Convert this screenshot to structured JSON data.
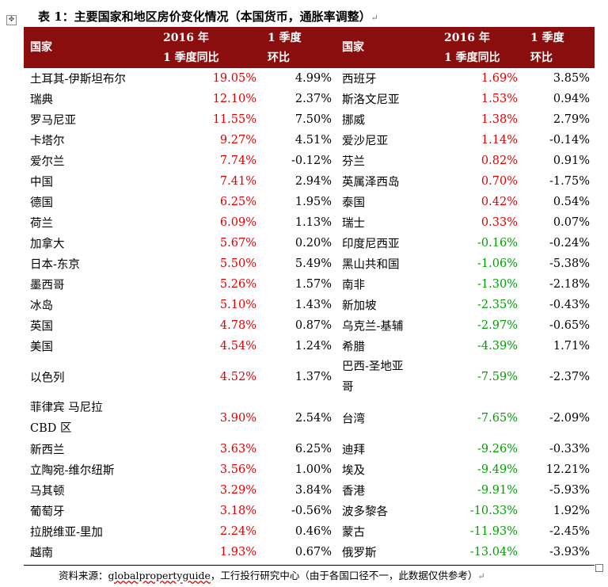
{
  "caption": "表 1：主要国家和地区房价变化情况（本国货币，通胀率调整）",
  "paragraph_mark": "↵",
  "anchor_glyph": "✥",
  "headers": {
    "country_left": "国家",
    "yoy_left_line1": "2016 年",
    "yoy_left_line2": "1 季度同比",
    "qoq_left_line1": "1 季度",
    "qoq_left_line2": "环比",
    "country_right": "国家",
    "yoy_right_line1": "2016 年",
    "yoy_right_line2": "1 季度同比",
    "qoq_right_line1": "1 季度",
    "qoq_right_line2": "环比"
  },
  "rows": [
    {
      "c1": "土耳其-伊斯坦布尔",
      "c2": "19.05%",
      "c3": "4.99%",
      "c4": "西班牙",
      "c5": "1.69%",
      "c6": "3.85%",
      "c5_sign": "pos"
    },
    {
      "c1": "瑞典",
      "c2": "12.10%",
      "c3": "2.37%",
      "c4": "斯洛文尼亚",
      "c5": "1.53%",
      "c6": "0.94%",
      "c5_sign": "pos"
    },
    {
      "c1": "罗马尼亚",
      "c2": "11.55%",
      "c3": "7.50%",
      "c4": "挪威",
      "c5": "1.38%",
      "c6": "2.79%",
      "c5_sign": "pos"
    },
    {
      "c1": "卡塔尔",
      "c2": "9.27%",
      "c3": "4.51%",
      "c4": "爱沙尼亚",
      "c5": "1.14%",
      "c6": "-0.14%",
      "c5_sign": "pos"
    },
    {
      "c1": "爱尔兰",
      "c2": "7.74%",
      "c3": "-0.12%",
      "c4": "芬兰",
      "c5": "0.82%",
      "c6": "0.91%",
      "c5_sign": "pos"
    },
    {
      "c1": "中国",
      "c2": "7.41%",
      "c3": "2.94%",
      "c4": "英属泽西岛",
      "c5": "0.70%",
      "c6": "-1.75%",
      "c5_sign": "pos"
    },
    {
      "c1": "德国",
      "c2": "6.25%",
      "c3": "1.95%",
      "c4": "泰国",
      "c5": "0.42%",
      "c6": "0.54%",
      "c5_sign": "pos"
    },
    {
      "c1": "荷兰",
      "c2": "6.09%",
      "c3": "1.13%",
      "c4": "瑞士",
      "c5": "0.33%",
      "c6": "0.07%",
      "c5_sign": "pos"
    },
    {
      "c1": "加拿大",
      "c2": "5.67%",
      "c3": "0.20%",
      "c4": "印度尼西亚",
      "c5": "-0.16%",
      "c6": "-0.24%",
      "c5_sign": "neg"
    },
    {
      "c1": "日本-东京",
      "c2": "5.50%",
      "c3": "5.49%",
      "c4": "黑山共和国",
      "c5": "-1.06%",
      "c6": "-5.38%",
      "c5_sign": "neg"
    },
    {
      "c1": "墨西哥",
      "c2": "5.26%",
      "c3": "1.57%",
      "c4": "南非",
      "c5": "-1.30%",
      "c6": "-2.18%",
      "c5_sign": "neg"
    },
    {
      "c1": "冰岛",
      "c2": "5.10%",
      "c3": "1.43%",
      "c4": "新加坡",
      "c5": "-2.35%",
      "c6": "-0.43%",
      "c5_sign": "neg"
    },
    {
      "c1": "英国",
      "c2": "4.78%",
      "c3": "0.87%",
      "c4": "乌克兰-基辅",
      "c5": "-2.97%",
      "c6": "-0.65%",
      "c5_sign": "neg"
    },
    {
      "c1": "美国",
      "c2": "4.54%",
      "c3": "1.24%",
      "c4": "希腊",
      "c5": "-4.39%",
      "c6": "1.71%",
      "c5_sign": "neg"
    },
    {
      "c1": "以色列",
      "c2": "4.52%",
      "c3": "1.37%",
      "c4_line1": "巴西-圣地亚",
      "c4_line2": "哥",
      "c5": "-7.59%",
      "c6": "-2.37%",
      "c5_sign": "neg",
      "tall": true
    },
    {
      "c1_line1": "菲律宾  马尼拉",
      "c1_line2": "CBD 区",
      "c2": "3.90%",
      "c3": "2.54%",
      "c4": "台湾",
      "c5": "-7.65%",
      "c6": "-2.09%",
      "c5_sign": "neg",
      "tall": true
    },
    {
      "c1": "新西兰",
      "c2": "3.63%",
      "c3": "6.25%",
      "c4": "迪拜",
      "c5": "-9.26%",
      "c6": "-0.33%",
      "c5_sign": "neg"
    },
    {
      "c1": "立陶宛-维尔纽斯",
      "c2": "3.56%",
      "c3": "1.00%",
      "c4": "埃及",
      "c5": "-9.49%",
      "c6": "12.21%",
      "c5_sign": "neg"
    },
    {
      "c1": "马其顿",
      "c2": "3.29%",
      "c3": "3.84%",
      "c4": "香港",
      "c5": "-9.91%",
      "c6": "-5.93%",
      "c5_sign": "neg"
    },
    {
      "c1": "葡萄牙",
      "c2": "3.18%",
      "c3": "-0.56%",
      "c4": "波多黎各",
      "c5": "-10.33%",
      "c6": "1.92%",
      "c5_sign": "neg"
    },
    {
      "c1": "拉脱维亚-里加",
      "c2": "2.24%",
      "c3": "0.46%",
      "c4": "蒙古",
      "c5": "-11.93%",
      "c6": "-2.45%",
      "c5_sign": "neg"
    },
    {
      "c1": "越南",
      "c2": "1.93%",
      "c3": "0.67%",
      "c4": "俄罗斯",
      "c5": "-13.04%",
      "c6": "-3.93%",
      "c5_sign": "neg"
    }
  ],
  "source": {
    "prefix": "资料来源：",
    "url_text": "globalpropertyguide",
    "suffix": "，工行投行研究中心（由于各国口径不一，此数据仅供参考）"
  },
  "colors": {
    "header_bg": "#8b0e0e",
    "positive": "#e00000",
    "negative": "#00a000"
  }
}
